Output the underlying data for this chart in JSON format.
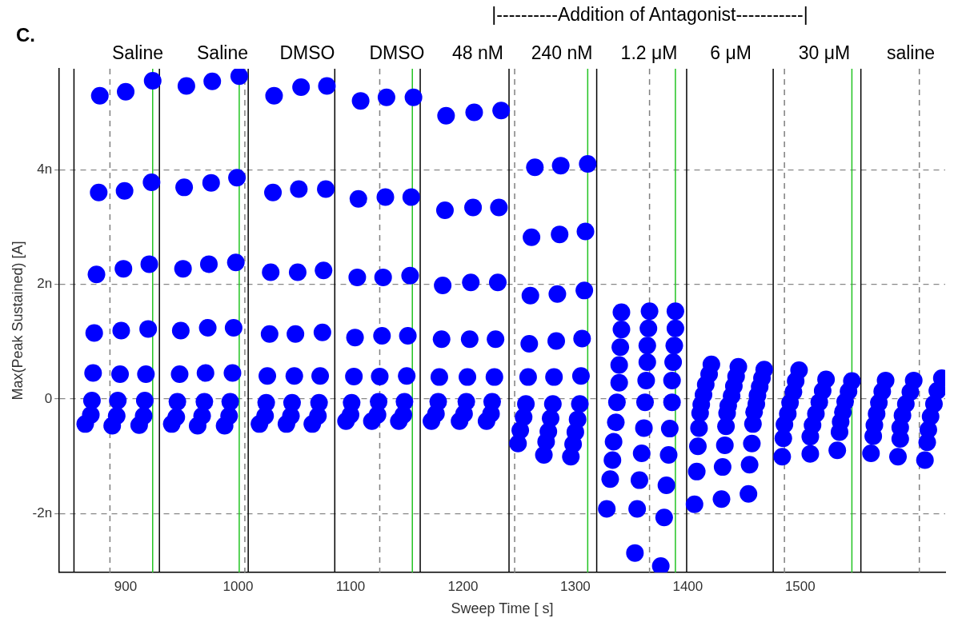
{
  "chart_data": {
    "type": "scatter",
    "title": "C.",
    "xlabel": "Sweep Time [ s]",
    "ylabel": "Max(Peak Sustained) [A]",
    "annotations": [
      "|----------Addition of Antagonist-----------|",
      "Saline",
      "Saline",
      "DMSO",
      "DMSO",
      "48 nM",
      "240 nM",
      "1.2 μM",
      "6 μM",
      "30 μM",
      "saline"
    ],
    "xlim": [
      841,
      1629
    ],
    "xticks": [
      900,
      1000,
      1100,
      1200,
      1300,
      1400,
      1500
    ],
    "ylim": [
      -3.03,
      5.76
    ],
    "yticks": [
      {
        "value": -2,
        "label": "-2n"
      },
      0,
      {
        "value": 2,
        "label": "2n"
      },
      {
        "value": 4,
        "label": "4n"
      }
    ],
    "grid": "y",
    "legend": false,
    "marker": "circle",
    "ref_lines": [
      {
        "axis": "x",
        "value": 854,
        "color": "#000000",
        "line_style": "solid"
      },
      {
        "axis": "x",
        "value": 930,
        "color": "#000000",
        "line_style": "solid"
      },
      {
        "axis": "x",
        "value": 1009,
        "color": "#000000",
        "line_style": "solid"
      },
      {
        "axis": "x",
        "value": 1086,
        "color": "#000000",
        "line_style": "solid"
      },
      {
        "axis": "x",
        "value": 1162,
        "color": "#000000",
        "line_style": "solid"
      },
      {
        "axis": "x",
        "value": 1241,
        "color": "#000000",
        "line_style": "solid"
      },
      {
        "axis": "x",
        "value": 1319,
        "color": "#000000",
        "line_style": "solid"
      },
      {
        "axis": "x",
        "value": 1399,
        "color": "#000000",
        "line_style": "solid"
      },
      {
        "axis": "x",
        "value": 1476,
        "color": "#000000",
        "line_style": "solid"
      },
      {
        "axis": "x",
        "value": 1554,
        "color": "#000000",
        "line_style": "solid"
      },
      {
        "axis": "x",
        "value": 886,
        "color": "#808080",
        "line_style": "dashed"
      },
      {
        "axis": "x",
        "value": 1006,
        "color": "#808080",
        "line_style": "dashed"
      },
      {
        "axis": "x",
        "value": 1126,
        "color": "#808080",
        "line_style": "dashed"
      },
      {
        "axis": "x",
        "value": 1246,
        "color": "#808080",
        "line_style": "dashed"
      },
      {
        "axis": "x",
        "value": 1366,
        "color": "#808080",
        "line_style": "dashed"
      },
      {
        "axis": "x",
        "value": 1486,
        "color": "#808080",
        "line_style": "dashed"
      },
      {
        "axis": "x",
        "value": 1606,
        "color": "#808080",
        "line_style": "dashed"
      },
      {
        "axis": "x",
        "value": 924,
        "color": "#22c422",
        "line_style": "solid"
      },
      {
        "axis": "x",
        "value": 1001,
        "color": "#22c422",
        "line_style": "solid"
      },
      {
        "axis": "x",
        "value": 1155,
        "color": "#22c422",
        "line_style": "solid"
      },
      {
        "axis": "x",
        "value": 1311,
        "color": "#22c422",
        "line_style": "solid"
      },
      {
        "axis": "x",
        "value": 1389,
        "color": "#22c422",
        "line_style": "solid"
      },
      {
        "axis": "x",
        "value": 1546,
        "color": "#22c422",
        "line_style": "solid"
      }
    ],
    "series": [
      {
        "color": "#0000ff",
        "x": [
          877,
          876,
          874,
          872,
          871,
          870,
          869,
          864,
          900,
          899,
          898,
          896,
          895,
          893,
          892,
          888,
          924,
          923,
          921,
          920,
          918,
          917,
          916,
          912,
          954,
          952,
          951,
          949,
          948,
          946,
          945,
          941,
          977,
          976,
          974,
          973,
          971,
          970,
          968,
          964,
          1001,
          999,
          998,
          996,
          995,
          993,
          992,
          988,
          1032,
          1031,
          1029,
          1028,
          1026,
          1025,
          1024,
          1019,
          1056,
          1054,
          1053,
          1051,
          1050,
          1048,
          1047,
          1043,
          1079,
          1078,
          1076,
          1075,
          1073,
          1072,
          1071,
          1066,
          1109,
          1107,
          1106,
          1104,
          1103,
          1101,
          1100,
          1096,
          1132,
          1131,
          1129,
          1128,
          1126,
          1125,
          1124,
          1119,
          1156,
          1154,
          1153,
          1151,
          1150,
          1148,
          1147,
          1143,
          1185,
          1184,
          1182,
          1181,
          1179,
          1178,
          1176,
          1172,
          1210,
          1209,
          1207,
          1206,
          1204,
          1203,
          1201,
          1197,
          1234,
          1232,
          1231,
          1229,
          1228,
          1226,
          1225,
          1221,
          1264,
          1261,
          1260,
          1259,
          1258,
          1256,
          1254,
          1251,
          1249,
          1287,
          1286,
          1284,
          1283,
          1281,
          1280,
          1278,
          1276,
          1274,
          1272,
          1311,
          1309,
          1308,
          1306,
          1305,
          1304,
          1302,
          1300,
          1298,
          1296,
          1341,
          1341,
          1340,
          1339,
          1339,
          1337,
          1336,
          1334,
          1333,
          1331,
          1328,
          1366,
          1365,
          1364,
          1364,
          1363,
          1362,
          1361,
          1359,
          1357,
          1355,
          1353,
          1389,
          1389,
          1388,
          1387,
          1386,
          1386,
          1384,
          1383,
          1381,
          1379,
          1376,
          1421,
          1419,
          1416,
          1414,
          1412,
          1411,
          1410,
          1409,
          1408,
          1406,
          1445,
          1443,
          1441,
          1439,
          1436,
          1435,
          1434,
          1433,
          1431,
          1430,
          1468,
          1466,
          1464,
          1462,
          1461,
          1459,
          1458,
          1457,
          1455,
          1454,
          1499,
          1496,
          1494,
          1491,
          1489,
          1486,
          1485,
          1484,
          1523,
          1520,
          1517,
          1514,
          1511,
          1509,
          1509,
          1546,
          1543,
          1540,
          1538,
          1536,
          1535,
          1533,
          1576,
          1573,
          1570,
          1568,
          1566,
          1565,
          1563,
          1601,
          1598,
          1594,
          1591,
          1589,
          1589,
          1587,
          1626,
          1622,
          1619,
          1616,
          1614,
          1613,
          1611
        ],
        "values": [
          5.29,
          3.6,
          2.17,
          1.15,
          0.45,
          -0.03,
          -0.28,
          -0.44,
          5.36,
          3.63,
          2.27,
          1.19,
          0.43,
          -0.03,
          -0.3,
          -0.47,
          5.55,
          3.78,
          2.35,
          1.22,
          0.43,
          -0.03,
          -0.3,
          -0.46,
          5.46,
          3.69,
          2.27,
          1.19,
          0.43,
          -0.05,
          -0.32,
          -0.44,
          5.54,
          3.77,
          2.35,
          1.24,
          0.45,
          -0.05,
          -0.3,
          -0.47,
          5.63,
          3.86,
          2.38,
          1.24,
          0.45,
          -0.05,
          -0.3,
          -0.47,
          5.29,
          3.6,
          2.21,
          1.13,
          0.4,
          -0.07,
          -0.3,
          -0.44,
          5.44,
          3.66,
          2.21,
          1.13,
          0.4,
          -0.07,
          -0.3,
          -0.44,
          5.46,
          3.66,
          2.24,
          1.16,
          0.4,
          -0.07,
          -0.3,
          -0.44,
          5.2,
          3.49,
          2.12,
          1.07,
          0.39,
          -0.07,
          -0.28,
          -0.39,
          5.26,
          3.52,
          2.12,
          1.1,
          0.39,
          -0.05,
          -0.28,
          -0.39,
          5.26,
          3.52,
          2.15,
          1.1,
          0.4,
          -0.05,
          -0.28,
          -0.39,
          4.94,
          3.29,
          1.98,
          1.04,
          0.38,
          -0.05,
          -0.26,
          -0.39,
          5.0,
          3.34,
          2.03,
          1.04,
          0.38,
          -0.05,
          -0.26,
          -0.39,
          5.03,
          3.34,
          2.03,
          1.04,
          0.38,
          -0.05,
          -0.26,
          -0.39,
          4.04,
          2.82,
          1.8,
          0.96,
          0.38,
          -0.09,
          -0.32,
          -0.55,
          -0.78,
          4.07,
          2.87,
          1.83,
          1.01,
          0.38,
          -0.09,
          -0.34,
          -0.57,
          -0.75,
          -0.98,
          4.1,
          2.92,
          1.89,
          1.05,
          0.4,
          -0.09,
          -0.36,
          -0.58,
          -0.79,
          -1.01,
          1.51,
          1.21,
          0.9,
          0.59,
          0.28,
          -0.06,
          -0.41,
          -0.75,
          -1.07,
          -1.4,
          -1.92,
          1.53,
          1.23,
          0.93,
          0.64,
          0.32,
          -0.06,
          -0.51,
          -0.95,
          -1.42,
          -1.92,
          -2.69,
          1.53,
          1.23,
          0.93,
          0.64,
          0.32,
          -0.06,
          -0.52,
          -0.98,
          -1.51,
          -2.07,
          -2.92,
          0.6,
          0.43,
          0.25,
          0.07,
          -0.1,
          -0.25,
          -0.51,
          -0.83,
          -1.27,
          -1.84,
          0.56,
          0.39,
          0.22,
          0.05,
          -0.12,
          -0.25,
          -0.48,
          -0.81,
          -1.19,
          -1.75,
          0.51,
          0.36,
          0.21,
          0.06,
          -0.09,
          -0.23,
          -0.44,
          -0.78,
          -1.15,
          -1.66,
          0.5,
          0.31,
          0.12,
          -0.07,
          -0.26,
          -0.45,
          -0.69,
          -1.01,
          0.34,
          0.14,
          -0.06,
          -0.26,
          -0.46,
          -0.66,
          -0.96,
          0.31,
          0.13,
          -0.05,
          -0.23,
          -0.4,
          -0.58,
          -0.9,
          0.32,
          0.13,
          -0.07,
          -0.26,
          -0.46,
          -0.65,
          -0.95,
          0.32,
          0.12,
          -0.09,
          -0.29,
          -0.5,
          -0.7,
          -1.01,
          0.36,
          0.14,
          -0.09,
          -0.31,
          -0.54,
          -0.76,
          -1.07
        ]
      }
    ]
  }
}
